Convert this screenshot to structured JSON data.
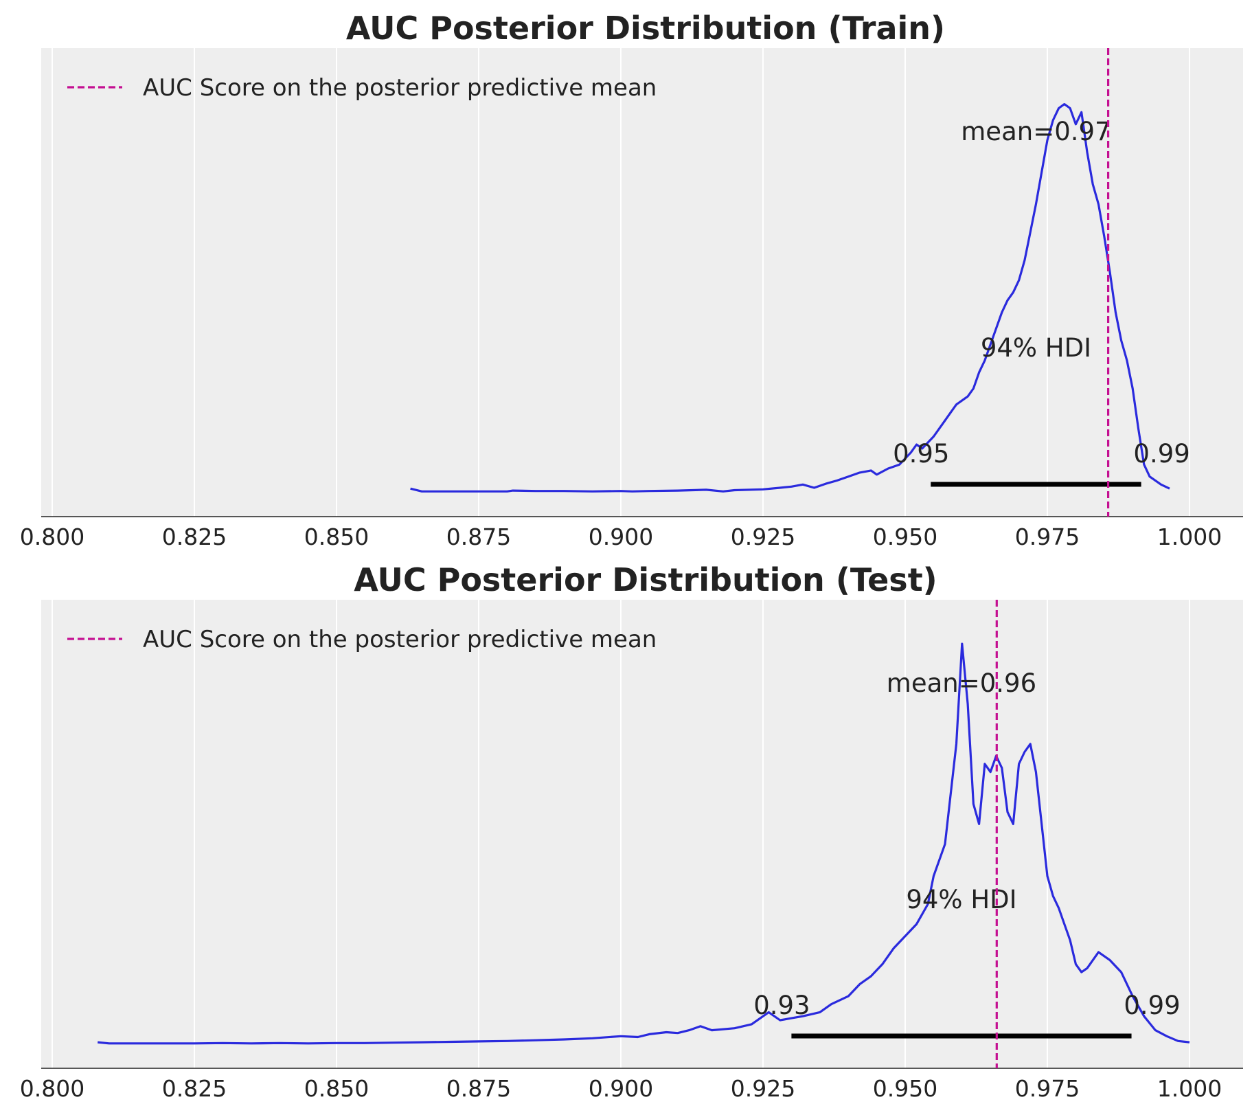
{
  "chart_data": [
    {
      "type": "line",
      "title": "AUC Posterior Distribution (Train)",
      "xlim": [
        0.8,
        1.0
      ],
      "x_ticks": [
        "0.800",
        "0.825",
        "0.850",
        "0.875",
        "0.900",
        "0.925",
        "0.950",
        "0.975",
        "1.000"
      ],
      "x_tick_values": [
        0.8,
        0.825,
        0.85,
        0.875,
        0.9,
        0.925,
        0.95,
        0.975,
        1.0
      ],
      "ylim": [
        0,
        1.05
      ],
      "grid": true,
      "density_color": "#2a2add",
      "density": {
        "x": [
          0.863,
          0.865,
          0.87,
          0.875,
          0.88,
          0.881,
          0.885,
          0.89,
          0.895,
          0.9,
          0.902,
          0.905,
          0.91,
          0.915,
          0.918,
          0.92,
          0.925,
          0.928,
          0.93,
          0.932,
          0.934,
          0.936,
          0.938,
          0.94,
          0.942,
          0.944,
          0.945,
          0.947,
          0.949,
          0.951,
          0.952,
          0.953,
          0.955,
          0.957,
          0.958,
          0.959,
          0.961,
          0.962,
          0.963,
          0.964,
          0.965,
          0.966,
          0.967,
          0.968,
          0.969,
          0.97,
          0.971,
          0.972,
          0.973,
          0.974,
          0.975,
          0.976,
          0.977,
          0.978,
          0.979,
          0.98,
          0.981,
          0.982,
          0.983,
          0.984,
          0.985,
          0.986,
          0.987,
          0.988,
          0.989,
          0.99,
          0.991,
          0.992,
          0.993,
          0.995,
          0.9965
        ],
        "y": [
          0.01,
          0.003,
          0.003,
          0.003,
          0.003,
          0.005,
          0.004,
          0.004,
          0.003,
          0.004,
          0.003,
          0.004,
          0.005,
          0.007,
          0.003,
          0.006,
          0.008,
          0.012,
          0.015,
          0.02,
          0.012,
          0.022,
          0.03,
          0.04,
          0.05,
          0.055,
          0.045,
          0.06,
          0.07,
          0.1,
          0.12,
          0.11,
          0.14,
          0.18,
          0.2,
          0.22,
          0.24,
          0.26,
          0.3,
          0.33,
          0.37,
          0.41,
          0.45,
          0.48,
          0.5,
          0.53,
          0.58,
          0.65,
          0.72,
          0.8,
          0.88,
          0.93,
          0.96,
          0.97,
          0.96,
          0.92,
          0.95,
          0.85,
          0.77,
          0.72,
          0.64,
          0.55,
          0.45,
          0.38,
          0.33,
          0.26,
          0.16,
          0.07,
          0.04,
          0.02,
          0.01
        ]
      },
      "reference_line": {
        "x": 0.9857,
        "label": "AUC Score on the posterior predictive mean",
        "color": "#c40f91"
      },
      "mean_label": "mean=0.97",
      "hdi": {
        "low": 0.9545,
        "high": 0.9915,
        "label": "94% HDI",
        "low_label": "0.95",
        "high_label": "0.99"
      },
      "legend_position": "upper-left"
    },
    {
      "type": "line",
      "title": "AUC Posterior Distribution (Test)",
      "xlim": [
        0.8,
        1.0
      ],
      "x_ticks": [
        "0.800",
        "0.825",
        "0.850",
        "0.875",
        "0.900",
        "0.925",
        "0.950",
        "0.975",
        "1.000"
      ],
      "x_tick_values": [
        0.8,
        0.825,
        0.85,
        0.875,
        0.9,
        0.925,
        0.95,
        0.975,
        1.0
      ],
      "ylim": [
        0,
        1.05
      ],
      "grid": true,
      "density_color": "#2a2add",
      "density": {
        "x": [
          0.808,
          0.81,
          0.815,
          0.82,
          0.825,
          0.83,
          0.835,
          0.84,
          0.845,
          0.85,
          0.855,
          0.86,
          0.865,
          0.87,
          0.875,
          0.88,
          0.885,
          0.89,
          0.895,
          0.9,
          0.903,
          0.905,
          0.908,
          0.91,
          0.912,
          0.914,
          0.916,
          0.92,
          0.923,
          0.926,
          0.928,
          0.93,
          0.932,
          0.935,
          0.937,
          0.94,
          0.942,
          0.944,
          0.946,
          0.948,
          0.95,
          0.952,
          0.954,
          0.955,
          0.957,
          0.959,
          0.96,
          0.961,
          0.962,
          0.963,
          0.964,
          0.965,
          0.966,
          0.967,
          0.968,
          0.969,
          0.97,
          0.971,
          0.972,
          0.973,
          0.974,
          0.975,
          0.976,
          0.977,
          0.978,
          0.979,
          0.98,
          0.981,
          0.982,
          0.984,
          0.986,
          0.988,
          0.99,
          0.992,
          0.994,
          0.996,
          0.998,
          1.0
        ],
        "y": [
          0.005,
          0.002,
          0.002,
          0.002,
          0.002,
          0.003,
          0.002,
          0.003,
          0.002,
          0.003,
          0.003,
          0.004,
          0.005,
          0.006,
          0.007,
          0.008,
          0.01,
          0.012,
          0.015,
          0.02,
          0.018,
          0.025,
          0.03,
          0.028,
          0.035,
          0.045,
          0.035,
          0.04,
          0.05,
          0.08,
          0.06,
          0.065,
          0.07,
          0.08,
          0.1,
          0.12,
          0.15,
          0.17,
          0.2,
          0.24,
          0.27,
          0.3,
          0.35,
          0.42,
          0.5,
          0.75,
          1.0,
          0.85,
          0.6,
          0.55,
          0.7,
          0.68,
          0.72,
          0.69,
          0.58,
          0.55,
          0.7,
          0.73,
          0.75,
          0.68,
          0.55,
          0.42,
          0.37,
          0.34,
          0.3,
          0.26,
          0.2,
          0.18,
          0.19,
          0.23,
          0.21,
          0.18,
          0.12,
          0.07,
          0.035,
          0.02,
          0.008,
          0.005
        ]
      },
      "reference_line": {
        "x": 0.9661,
        "label": "AUC Score on the posterior predictive mean",
        "color": "#c40f91"
      },
      "mean_label": "mean=0.96",
      "hdi": {
        "low": 0.93,
        "high": 0.9898,
        "label": "94% HDI",
        "low_label": "0.93",
        "high_label": "0.99"
      },
      "legend_position": "upper-left"
    }
  ]
}
